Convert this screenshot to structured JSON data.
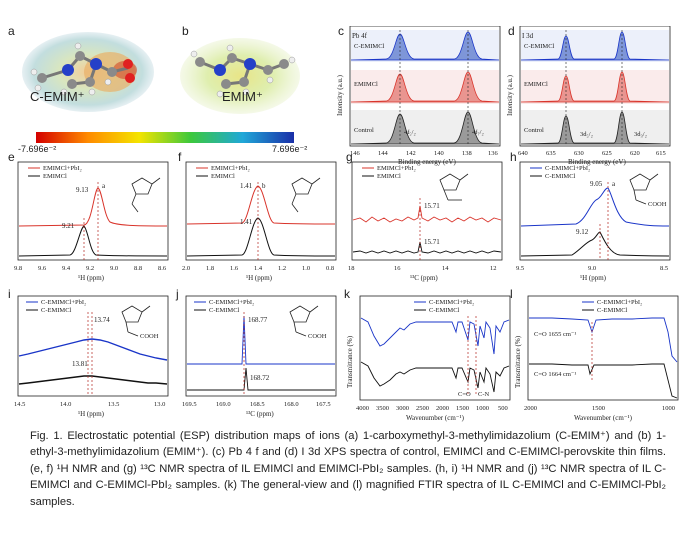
{
  "panels": {
    "a": {
      "label": "a",
      "ion": "C-EMIM⁺"
    },
    "b": {
      "label": "b",
      "ion": "EMIM⁺"
    },
    "colorbar": {
      "min": "-7.696e⁻²",
      "max": "7.696e⁻²"
    },
    "c": {
      "label": "c",
      "title": "Pb 4f",
      "ylabel": "Intensity (a.u.)",
      "xlabel": "Binding energy (eV)",
      "ticks": [
        "146",
        "144",
        "142",
        "140",
        "138",
        "136"
      ],
      "traces": [
        "C-EMIMCl",
        "EMIMCl",
        "Control"
      ],
      "peaks": [
        "4f₅/₂",
        "4f₇/₂"
      ]
    },
    "d": {
      "label": "d",
      "title": "I 3d",
      "ylabel": "Intensity (a.u.)",
      "xlabel": "Binding energy (eV)",
      "ticks": [
        "640",
        "635",
        "630",
        "625",
        "620",
        "615"
      ],
      "traces": [
        "C-EMIMCl",
        "EMIMCl",
        "Control"
      ],
      "peaks": [
        "3d₅/₂",
        "3d₃/₂"
      ]
    },
    "e": {
      "label": "e",
      "legend": [
        "EMIMCl+PbI₂",
        "EMIMCl"
      ],
      "xlabel": "¹H (ppm)",
      "ticks": [
        "9.8",
        "9.6",
        "9.4",
        "9.2",
        "9.0",
        "8.8",
        "8.6"
      ],
      "peak_top": "9.13",
      "peak_bottom": "9.21",
      "site": "a"
    },
    "f": {
      "label": "f",
      "legend": [
        "EMIMCl+PbI₂",
        "EMIMCl"
      ],
      "xlabel": "¹H (ppm)",
      "ticks": [
        "2.0",
        "1.8",
        "1.6",
        "1.4",
        "1.2",
        "1.0",
        "0.8"
      ],
      "peak_top": "1.41",
      "peak_bottom": "1.41",
      "site": "b"
    },
    "g": {
      "label": "g",
      "legend": [
        "EMIMCl+PbI₂",
        "EMIMCl"
      ],
      "xlabel": "¹³C (ppm)",
      "ticks": [
        "18",
        "16",
        "14",
        "12"
      ],
      "peak_top": "15.71",
      "peak_bottom": "15.71"
    },
    "h": {
      "label": "h",
      "legend": [
        "C-EMIMCl+PbI₂",
        "C-EMIMCl"
      ],
      "xlabel": "¹H (ppm)",
      "ticks": [
        "9.5",
        "9.0",
        "8.5"
      ],
      "peak_top": "9.05",
      "peak_bottom": "9.12",
      "site": "a"
    },
    "i": {
      "label": "i",
      "legend": [
        "C-EMIMCl+PbI₂",
        "C-EMIMCl"
      ],
      "xlabel": "¹H (ppm)",
      "ticks": [
        "14.5",
        "14.0",
        "13.5",
        "13.0"
      ],
      "peak_top": "13.74",
      "peak_bottom": "13.81",
      "group": "COOH"
    },
    "j": {
      "label": "j",
      "legend": [
        "C-EMIMCl+PbI₂",
        "C-EMIMCl"
      ],
      "xlabel": "¹³C (ppm)",
      "ticks": [
        "169.5",
        "169.0",
        "168.5",
        "168.0",
        "167.5"
      ],
      "peak_top": "168.77",
      "peak_bottom": "168.72"
    },
    "k": {
      "label": "k",
      "legend": [
        "C-EMIMCl+PbI₂",
        "C-EMIMCl"
      ],
      "ylabel": "Transmittance (%)",
      "xlabel": "Wavenumber (cm⁻¹)",
      "ticks": [
        "4000",
        "3500",
        "3000",
        "2500",
        "2000",
        "1500",
        "1000",
        "500"
      ],
      "bands": [
        "C=O",
        "C-N"
      ]
    },
    "l": {
      "label": "l",
      "legend": [
        "C-EMIMCl+PbI₂",
        "C-EMIMCl"
      ],
      "ylabel": "Transmittance (%)",
      "xlabel": "Wavenumber (cm⁻¹)",
      "ticks": [
        "2000",
        "1500",
        "1000"
      ],
      "band_top": "C=O 1655 cm⁻¹",
      "band_bottom": "C=O 1664 cm⁻¹"
    }
  },
  "caption": "Fig. 1. Electrostatic potential (ESP) distribution maps of ions (a) 1-carboxymethyl-3-methylimidazolium (C-EMIM⁺) and (b) 1-ethyl-3-methylimidazolium (EMIM⁺). (c) Pb 4 f and (d) I 3d XPS spectra of control, EMIMCl and C-EMIMCl-perovskite thin films. (e, f) ¹H NMR and (g) ¹³C NMR spectra of IL EMIMCl and EMIMCl-PbI₂ samples. (h, i) ¹H NMR and (j) ¹³C NMR spectra of IL C-EMIMCl and C-EMIMCl-PbI₂ samples. (k) The general-view and (l) magnified FTIR spectra of IL C-EMIMCl and C-EMIMCl-PbI₂ samples.",
  "colors": {
    "blue": "#1a35c8",
    "red": "#d9342b",
    "black": "#111111",
    "dash": "#b3261e"
  }
}
